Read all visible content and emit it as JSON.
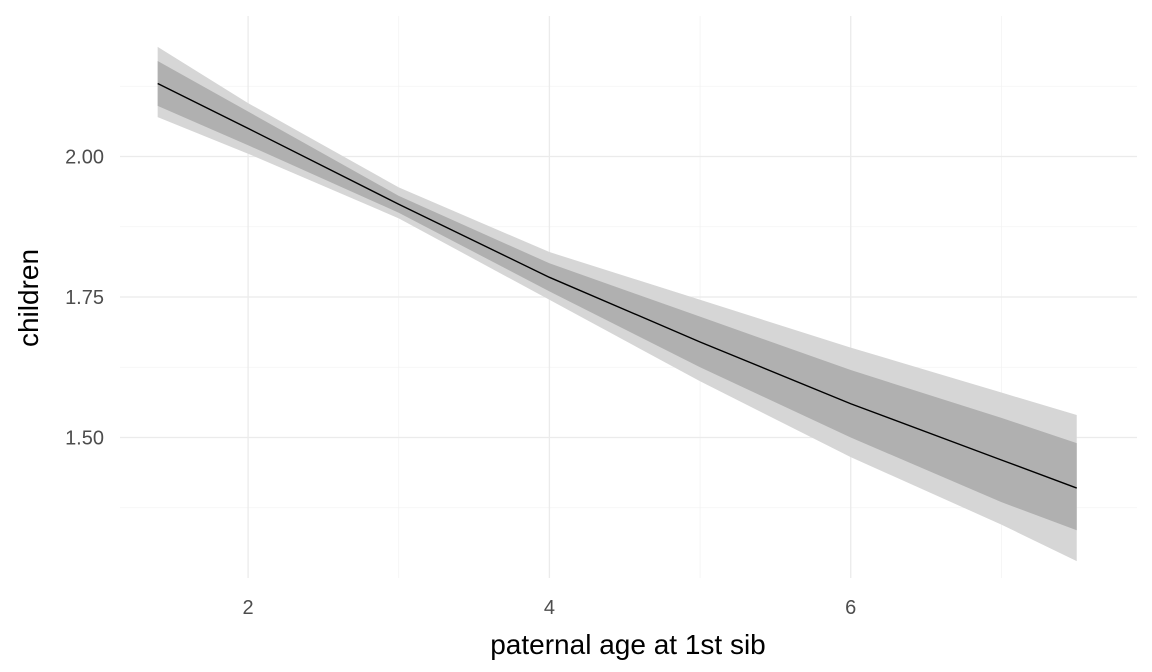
{
  "chart_data": {
    "type": "line",
    "title": "",
    "xlabel": "paternal age at 1st sib",
    "ylabel": "children",
    "xlim": [
      1.15,
      7.9
    ],
    "ylim": [
      1.25,
      2.25
    ],
    "x_ticks": [
      2,
      4,
      6
    ],
    "x_tick_labels": [
      "2",
      "4",
      "6"
    ],
    "x_minor_ticks": [
      3,
      5,
      7
    ],
    "y_ticks": [
      1.5,
      1.75,
      2.0
    ],
    "y_tick_labels": [
      "1.50",
      "1.75",
      "2.00"
    ],
    "y_minor_ticks": [
      1.375,
      1.625,
      1.875,
      2.125
    ],
    "grid": true,
    "legend": "none",
    "x": [
      1.4,
      2.0,
      3.0,
      4.0,
      5.0,
      6.0,
      7.0,
      7.5
    ],
    "series": [
      {
        "values": [
          2.13,
          2.05,
          1.915,
          1.785,
          1.67,
          1.56,
          1.46,
          1.41
        ],
        "inner_lower": [
          2.09,
          2.02,
          1.9,
          1.76,
          1.625,
          1.5,
          1.385,
          1.335
        ],
        "inner_upper": [
          2.17,
          2.08,
          1.93,
          1.81,
          1.715,
          1.62,
          1.535,
          1.49
        ],
        "outer_lower": [
          2.07,
          2.005,
          1.89,
          1.745,
          1.6,
          1.465,
          1.345,
          1.28
        ],
        "outer_upper": [
          2.195,
          2.095,
          1.945,
          1.83,
          1.745,
          1.66,
          1.58,
          1.54
        ],
        "line_color": "#000000",
        "inner_band_color": "#b0b0b0",
        "outer_band_color": "#d6d6d6"
      }
    ]
  }
}
